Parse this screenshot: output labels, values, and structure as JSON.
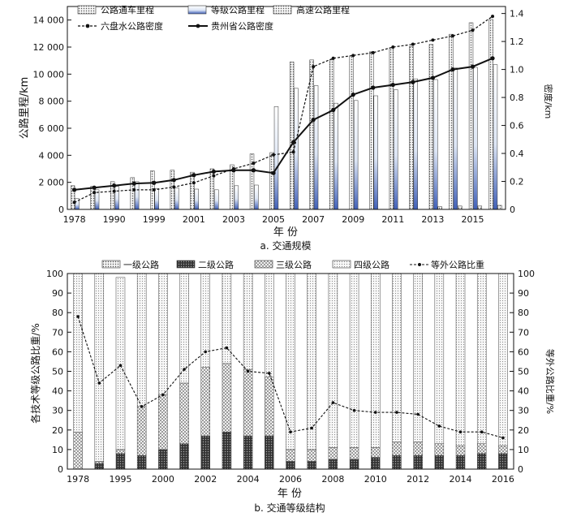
{
  "chart_data": [
    {
      "type": "bar",
      "title": "",
      "caption": "a. 交通规模",
      "xlabel": "年 份",
      "ylabel": "公路里程/km",
      "y2label": "密度/km",
      "ylim": [
        0,
        15000
      ],
      "y2lim": [
        0,
        1.45
      ],
      "yticks": [
        0,
        2000,
        4000,
        6000,
        8000,
        10000,
        12000,
        14000
      ],
      "y2ticks": [
        0,
        0.2,
        0.4,
        0.6,
        0.8,
        1.0,
        1.2,
        1.4
      ],
      "categories": [
        "1978",
        "1989",
        "1990",
        "1995",
        "1999",
        "2000",
        "2001",
        "2002",
        "2003",
        "2004",
        "2005",
        "2006",
        "2007",
        "2008",
        "2009",
        "2010",
        "2011",
        "2012",
        "2013",
        "2014",
        "2015",
        "2016"
      ],
      "tick_labels": [
        "1978",
        "1990",
        "1999",
        "2001",
        "2003",
        "2005",
        "2007",
        "2009",
        "2011",
        "2013",
        "2015"
      ],
      "legend_position": "top-left",
      "series": [
        {
          "name": "公路通车里程",
          "kind": "bar",
          "pattern": "dots",
          "values": [
            1750,
            1700,
            2050,
            2350,
            2850,
            2900,
            2750,
            3000,
            3300,
            4100,
            4200,
            10900,
            11050,
            11050,
            11350,
            11650,
            11950,
            12050,
            12200,
            12950,
            13800,
            14050
          ]
        },
        {
          "name": "等级公路里程",
          "kind": "bar",
          "pattern": "blue-gradient",
          "values": [
            800,
            1450,
            1700,
            2050,
            1550,
            1600,
            1500,
            1450,
            1750,
            1800,
            7600,
            8950,
            9150,
            7850,
            8050,
            8400,
            8850,
            9650,
            9600,
            10450,
            10500,
            10700
          ]
        },
        {
          "name": "高速公路里程",
          "kind": "bar",
          "pattern": "dots",
          "values": [
            0,
            0,
            0,
            0,
            0,
            0,
            0,
            0,
            0,
            0,
            0,
            0,
            0,
            0,
            0,
            0,
            0,
            0,
            200,
            250,
            250,
            300
          ]
        },
        {
          "name": "六盘水公路密度",
          "kind": "line",
          "style": "dashed-marker",
          "values": [
            0.05,
            0.12,
            0.13,
            0.14,
            0.14,
            0.16,
            0.19,
            0.24,
            0.29,
            0.33,
            0.39,
            0.41,
            1.02,
            1.08,
            1.1,
            1.12,
            1.16,
            1.18,
            1.21,
            1.24,
            1.28,
            1.38
          ]
        },
        {
          "name": "贵州省公路密度",
          "kind": "line",
          "style": "solid-marker",
          "values": [
            0.14,
            0.155,
            0.17,
            0.185,
            0.19,
            0.21,
            0.245,
            0.27,
            0.28,
            0.28,
            0.26,
            0.48,
            0.64,
            0.71,
            0.82,
            0.87,
            0.89,
            0.91,
            0.94,
            1.0,
            1.02,
            1.08
          ]
        }
      ]
    },
    {
      "type": "bar",
      "title": "",
      "caption": "b. 交通等级结构",
      "xlabel": "年 份",
      "ylabel": "各技术等级公路比重/%",
      "y2label": "等外公路比重/%",
      "ylim": [
        0,
        100
      ],
      "y2lim": [
        0,
        100
      ],
      "yticks": [
        0,
        10,
        20,
        30,
        40,
        50,
        60,
        70,
        80,
        90,
        100
      ],
      "y2ticks": [
        0,
        10,
        20,
        30,
        40,
        50,
        60,
        70,
        80,
        90,
        100
      ],
      "categories": [
        "1978",
        "1990",
        "1995",
        "1999",
        "2000",
        "2001",
        "2002",
        "2003",
        "2004",
        "2005",
        "2006",
        "2007",
        "2008",
        "2009",
        "2010",
        "2011",
        "2012",
        "2013",
        "2014",
        "2015",
        "2016"
      ],
      "tick_labels": [
        "1978",
        "1995",
        "2000",
        "2002",
        "2004",
        "2006",
        "2008",
        "2010",
        "2012",
        "2014",
        "2016"
      ],
      "legend_position": "top",
      "stacked": true,
      "series": [
        {
          "name": "一级公路",
          "kind": "bar",
          "pattern": "dots",
          "values": [
            0,
            0,
            0,
            0,
            0,
            0,
            0,
            0,
            0,
            0,
            0,
            0,
            0,
            0,
            0,
            0,
            0,
            0,
            0,
            0,
            0
          ]
        },
        {
          "name": "二级公路",
          "kind": "bar",
          "pattern": "dark-dots",
          "values": [
            0,
            3,
            8,
            7,
            10,
            13,
            17,
            19,
            17,
            17,
            4,
            4,
            5,
            5,
            6,
            7,
            7,
            7,
            7,
            8,
            8
          ]
        },
        {
          "name": "三级公路",
          "kind": "bar",
          "pattern": "cross-hatch",
          "values": [
            19,
            1,
            2,
            25,
            28,
            31,
            35,
            35,
            34,
            30,
            6,
            6,
            6,
            6,
            5,
            7,
            7,
            6,
            5,
            5,
            4
          ]
        },
        {
          "name": "四级公路",
          "kind": "bar",
          "pattern": "light-dots",
          "values": [
            81,
            96,
            88,
            68,
            62,
            56,
            48,
            46,
            49,
            53,
            90,
            90,
            89,
            89,
            89,
            86,
            86,
            87,
            88,
            87,
            88
          ]
        },
        {
          "name": "等外公路比重",
          "kind": "line",
          "style": "dashed-marker",
          "values": [
            78,
            44,
            53,
            32,
            38,
            51,
            60,
            62,
            50,
            49,
            19,
            21,
            34,
            30,
            29,
            29,
            28,
            22,
            19,
            19,
            16
          ]
        }
      ]
    }
  ]
}
